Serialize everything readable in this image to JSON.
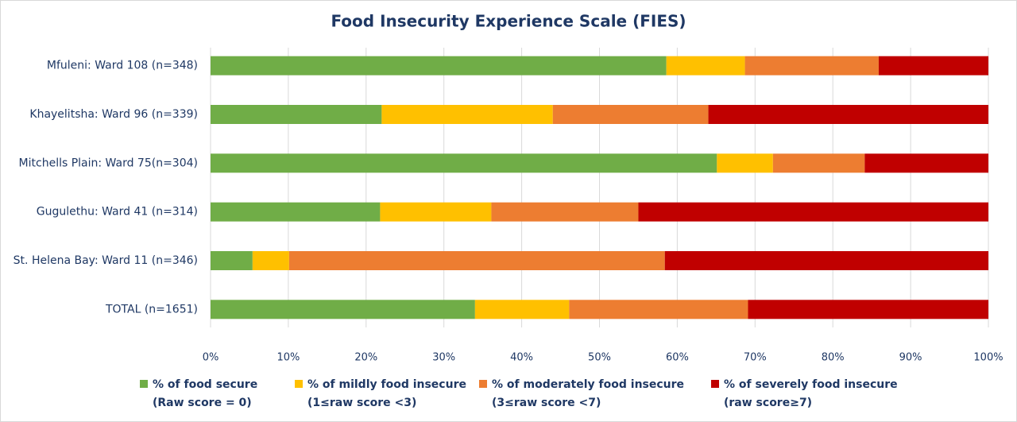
{
  "chart_data": {
    "type": "stacked_barh",
    "title": "Food Insecurity Experience Scale (FIES)",
    "categories": [
      "Mfuleni: Ward 108 (n=348)",
      "Khayelitsha: Ward 96 (n=339)",
      "Mitchells Plain: Ward 75(n=304)",
      "Gugulethu: Ward 41 (n=314)",
      "St. Helena Bay: Ward 11 (n=346)",
      "TOTAL (n=1651)"
    ],
    "series": [
      {
        "name": "% of food secure",
        "legend_subtitle": "(Raw score = 0)",
        "color": "#70ad47",
        "values": [
          58.6,
          22.0,
          65.1,
          21.8,
          5.4,
          34.0
        ]
      },
      {
        "name": "% of mildly food insecure",
        "legend_subtitle": "(1≤raw score <3)",
        "color": "#ffc000",
        "values": [
          10.1,
          22.0,
          7.2,
          14.3,
          4.7,
          12.1
        ]
      },
      {
        "name": "% of moderately food insecure",
        "legend_subtitle": "(3≤raw score <7)",
        "color": "#ed7d31",
        "values": [
          17.2,
          20.0,
          11.8,
          18.9,
          48.3,
          23.0
        ]
      },
      {
        "name": "% of severely food insecure",
        "legend_subtitle": "(raw score≥7)",
        "color": "#c00000",
        "values": [
          14.1,
          36.0,
          15.9,
          45.0,
          41.6,
          30.9
        ]
      }
    ],
    "xlim": [
      0,
      100
    ],
    "xticks": [
      {
        "value": 0,
        "label": "0%"
      },
      {
        "value": 10,
        "label": "10%"
      },
      {
        "value": 20,
        "label": "20%"
      },
      {
        "value": 30,
        "label": "30%"
      },
      {
        "value": 40,
        "label": "40%"
      },
      {
        "value": 50,
        "label": "50%"
      },
      {
        "value": 60,
        "label": "60%"
      },
      {
        "value": 70,
        "label": "70%"
      },
      {
        "value": 80,
        "label": "80%"
      },
      {
        "value": 90,
        "label": "90%"
      },
      {
        "value": 100,
        "label": "100%"
      }
    ],
    "grid": true,
    "legend": "bottom"
  }
}
